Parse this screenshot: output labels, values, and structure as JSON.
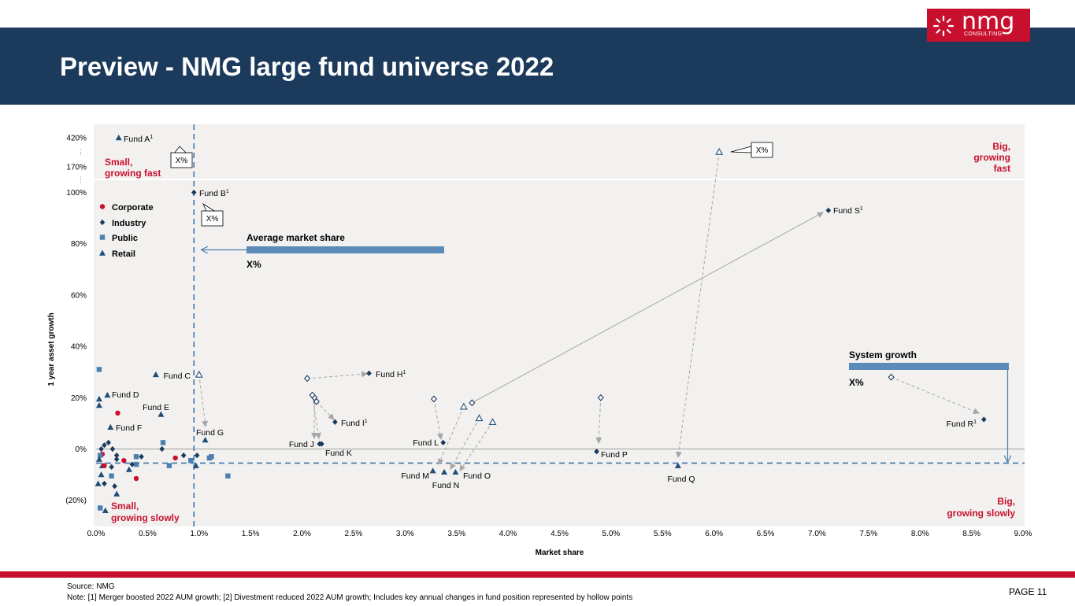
{
  "header": {
    "title": "Preview - NMG large fund universe 2022",
    "logo_text": "nmg",
    "logo_sub": "CONSULTING"
  },
  "colors": {
    "navy": "#1b3a5c",
    "red": "#c8102e",
    "corporate": "#c8102e",
    "industry": "#1b3a5c",
    "public": "#4a7fb0",
    "retail": "#1f4e79",
    "plot_bg": "#f2f1ef",
    "bar": "#5b8bb8"
  },
  "footer": {
    "source": "Source: NMG",
    "note": "Note: [1] Merger boosted 2022 AUM growth; [2] Divestment reduced 2022 AUM growth; Includes key annual changes in fund position represented by hollow points",
    "page": "PAGE 11"
  },
  "chart_data": {
    "type": "scatter",
    "xlabel": "Market share",
    "ylabel": "1 year asset growth",
    "xlim": [
      0,
      9
    ],
    "x_ticks": [
      "0.0%",
      "0.5%",
      "1.0%",
      "1.5%",
      "2.0%",
      "2.5%",
      "3.0%",
      "3.5%",
      "4.0%",
      "4.5%",
      "5.0%",
      "5.5%",
      "6.0%",
      "6.5%",
      "7.0%",
      "7.5%",
      "8.0%",
      "8.5%",
      "9.0%"
    ],
    "y_ticks": [
      "(20%)",
      "0%",
      "20%",
      "40%",
      "60%",
      "80%",
      "100%",
      "170%",
      "420%"
    ],
    "y_scale": "broken axis above 100% (170%, 420%)",
    "legend": [
      {
        "name": "Corporate",
        "marker": "circle"
      },
      {
        "name": "Industry",
        "marker": "diamond"
      },
      {
        "name": "Public",
        "marker": "square"
      },
      {
        "name": "Retail",
        "marker": "triangle"
      }
    ],
    "quadrants": {
      "top_left": "Small,\ngrowing fast",
      "top_right": "Big,\ngrowing\nfast",
      "bottom_left": "Small,\ngrowing slowly",
      "bottom_right": "Big,\ngrowing slowly"
    },
    "average_market_share": {
      "label": "Average market share",
      "value_label": "X%",
      "x": 0.95
    },
    "system_growth": {
      "label": "System growth",
      "value_label": "X%",
      "y": -5.5
    },
    "callouts": [
      "X%",
      "X%",
      "X%"
    ],
    "labeled_funds": [
      {
        "name": "Fund A",
        "sup": "1",
        "type": "Retail",
        "x": 0.22,
        "y": "420%"
      },
      {
        "name": "Fund B",
        "sup": "1",
        "type": "Industry",
        "x": 0.95,
        "y": 100
      },
      {
        "name": "Fund C",
        "type": "Retail",
        "x": 0.58,
        "y": 29
      },
      {
        "name": "Fund D",
        "type": "Retail",
        "x": 0.11,
        "y": 21
      },
      {
        "name": "Fund E",
        "type": "Retail",
        "x": 0.63,
        "y": 13.5
      },
      {
        "name": "Fund F",
        "type": "Retail",
        "x": 0.14,
        "y": 8.5
      },
      {
        "name": "Fund G",
        "type": "Retail",
        "x": 1.06,
        "y": 3.5
      },
      {
        "name": "Fund H",
        "sup": "1",
        "type": "Industry",
        "x": 2.65,
        "y": 29.5
      },
      {
        "name": "Fund I",
        "sup": "1",
        "type": "Industry",
        "x": 2.32,
        "y": 10.5
      },
      {
        "name": "Fund J",
        "type": "Industry",
        "x": 2.17,
        "y": 2
      },
      {
        "name": "Fund K",
        "type": "Industry",
        "x": 2.19,
        "y": 2
      },
      {
        "name": "Fund L",
        "type": "Industry",
        "x": 3.37,
        "y": 2.5
      },
      {
        "name": "Fund M",
        "type": "Retail",
        "x": 3.27,
        "y": -8.5
      },
      {
        "name": "Fund N",
        "type": "Retail",
        "x": 3.38,
        "y": -9
      },
      {
        "name": "Fund O",
        "type": "Retail",
        "x": 3.49,
        "y": -9
      },
      {
        "name": "Fund P",
        "type": "Industry",
        "x": 4.86,
        "y": -1
      },
      {
        "name": "Fund Q",
        "type": "Retail",
        "x": 5.65,
        "y": -6.5
      },
      {
        "name": "Fund R",
        "sup": "1",
        "type": "Industry",
        "x": 8.62,
        "y": 11.5
      },
      {
        "name": "Fund S",
        "sup": "1",
        "type": "Industry",
        "x": 7.11,
        "y": 93
      }
    ],
    "prior_positions": [
      {
        "to": "Fund G",
        "type": "Retail",
        "x": 1.0,
        "y": 29
      },
      {
        "to": "Fund H",
        "type": "Industry",
        "x": 2.05,
        "y": 27.5
      },
      {
        "to": "Fund I",
        "type": "Industry",
        "x": 2.14,
        "y": 18.5
      },
      {
        "to": "Fund J",
        "type": "Industry",
        "x": 2.12,
        "y": 20
      },
      {
        "to": "Fund K",
        "type": "Industry",
        "x": 2.1,
        "y": 21
      },
      {
        "to": "Fund L",
        "type": "Industry",
        "x": 3.28,
        "y": 19.5
      },
      {
        "to": "Fund M",
        "type": "Retail",
        "x": 3.57,
        "y": 16.5
      },
      {
        "to": "Fund N",
        "type": "Retail",
        "x": 3.72,
        "y": 12
      },
      {
        "to": "Fund O",
        "type": "Retail",
        "x": 3.85,
        "y": 10.5
      },
      {
        "to": "Fund P",
        "type": "Industry",
        "x": 4.9,
        "y": 20
      },
      {
        "to": "Fund Q",
        "type": "Retail",
        "x": 6.05,
        "y": "above 170%"
      },
      {
        "to": "Fund R",
        "type": "Industry",
        "x": 7.72,
        "y": 28
      },
      {
        "to": "Fund S",
        "type": "Industry",
        "x": 3.65,
        "y": 18
      }
    ],
    "unlabeled_points": [
      {
        "type": "Public",
        "x": 0.03,
        "y": 31
      },
      {
        "type": "Retail",
        "x": 0.03,
        "y": 19.5
      },
      {
        "type": "Retail",
        "x": 0.03,
        "y": 17
      },
      {
        "type": "Corporate",
        "x": 0.21,
        "y": 14
      },
      {
        "type": "Industry",
        "x": 0.12,
        "y": 2.5
      },
      {
        "type": "Industry",
        "x": 0.08,
        "y": 1.5
      },
      {
        "type": "Industry",
        "x": 0.05,
        "y": 0
      },
      {
        "type": "Industry",
        "x": 0.16,
        "y": 0
      },
      {
        "type": "Corporate",
        "x": 0.06,
        "y": -2
      },
      {
        "type": "Public",
        "x": 0.04,
        "y": -2.5
      },
      {
        "type": "Industry",
        "x": 0.2,
        "y": -2.5
      },
      {
        "type": "Industry",
        "x": 0.2,
        "y": -4
      },
      {
        "type": "Retail",
        "x": 0.03,
        "y": -4
      },
      {
        "type": "Corporate",
        "x": 0.27,
        "y": -4.5
      },
      {
        "type": "Public",
        "x": 0.39,
        "y": -3
      },
      {
        "type": "Industry",
        "x": 0.44,
        "y": -3
      },
      {
        "type": "Corporate",
        "x": 0.77,
        "y": -3.5
      },
      {
        "type": "Industry",
        "x": 0.85,
        "y": -2.5
      },
      {
        "type": "Industry",
        "x": 0.98,
        "y": -2.5
      },
      {
        "type": "Public",
        "x": 0.92,
        "y": -4.5
      },
      {
        "type": "Public",
        "x": 1.1,
        "y": -3.5
      },
      {
        "type": "Public",
        "x": 1.12,
        "y": -3
      },
      {
        "type": "Public",
        "x": 0.65,
        "y": 2.5
      },
      {
        "type": "Industry",
        "x": 0.64,
        "y": 0
      },
      {
        "type": "Retail",
        "x": 0.06,
        "y": -6.5
      },
      {
        "type": "Corporate",
        "x": 0.08,
        "y": -6.5
      },
      {
        "type": "Industry",
        "x": 0.15,
        "y": -7
      },
      {
        "type": "Retail",
        "x": 0.32,
        "y": -8
      },
      {
        "type": "Public",
        "x": 0.39,
        "y": -6
      },
      {
        "type": "Industry",
        "x": 0.35,
        "y": -6
      },
      {
        "type": "Public",
        "x": 0.71,
        "y": -6.5
      },
      {
        "type": "Retail",
        "x": 0.97,
        "y": -6.5
      },
      {
        "type": "Public",
        "x": 0.15,
        "y": -10.5
      },
      {
        "type": "Retail",
        "x": 0.05,
        "y": -10
      },
      {
        "type": "Corporate",
        "x": 0.39,
        "y": -11.5
      },
      {
        "type": "Public",
        "x": 1.28,
        "y": -10.5
      },
      {
        "type": "Retail",
        "x": 0.02,
        "y": -13.5
      },
      {
        "type": "Industry",
        "x": 0.08,
        "y": -13.5
      },
      {
        "type": "Industry",
        "x": 0.18,
        "y": -14.5
      },
      {
        "type": "Retail",
        "x": 0.2,
        "y": -17.5
      },
      {
        "type": "Public",
        "x": 0.04,
        "y": -23
      },
      {
        "type": "Retail",
        "x": 0.09,
        "y": -24
      }
    ]
  }
}
